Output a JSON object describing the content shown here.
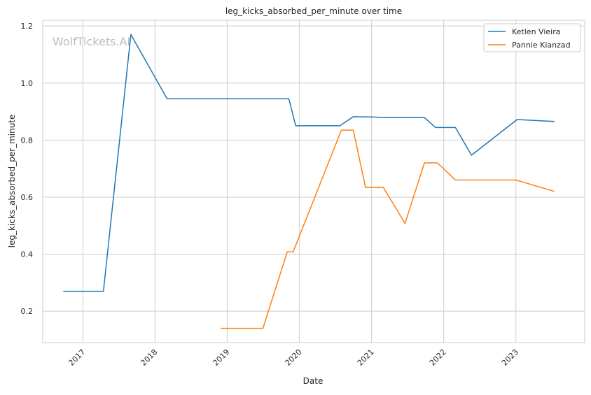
{
  "chart_data": {
    "type": "line",
    "title": "leg_kicks_absorbed_per_minute over time",
    "xlabel": "Date",
    "ylabel": "leg_kicks_absorbed_per_minute",
    "watermark": "WolfTickets.AI",
    "grid": true,
    "legend_position": "top-right",
    "x_tick_labels": [
      "2017",
      "2018",
      "2019",
      "2020",
      "2021",
      "2022",
      "2023"
    ],
    "y_tick_labels": [
      "0.2",
      "0.4",
      "0.6",
      "0.8",
      "1.0",
      "1.2"
    ],
    "xlim": [
      "2016-06-12",
      "2023-12-15"
    ],
    "ylim": [
      0.09,
      1.22
    ],
    "series": [
      {
        "name": "Ketlen Vieira",
        "color": "#1f77b4",
        "points": [
          {
            "x": "2016-09-24",
            "y": 0.27
          },
          {
            "x": "2017-04-15",
            "y": 0.27
          },
          {
            "x": "2017-09-01",
            "y": 1.17
          },
          {
            "x": "2018-03-03",
            "y": 0.945
          },
          {
            "x": "2019-11-09",
            "y": 0.945
          },
          {
            "x": "2019-12-14",
            "y": 0.85
          },
          {
            "x": "2020-07-25",
            "y": 0.85
          },
          {
            "x": "2020-09-30",
            "y": 0.882
          },
          {
            "x": "2021-01-01",
            "y": 0.881
          },
          {
            "x": "2021-02-27",
            "y": 0.879
          },
          {
            "x": "2021-09-25",
            "y": 0.879
          },
          {
            "x": "2021-11-20",
            "y": 0.844
          },
          {
            "x": "2022-03-01",
            "y": 0.844
          },
          {
            "x": "2022-05-21",
            "y": 0.747
          },
          {
            "x": "2023-01-07",
            "y": 0.872
          },
          {
            "x": "2023-07-15",
            "y": 0.865
          }
        ]
      },
      {
        "name": "Pannie Kianzad",
        "color": "#ff7f0e",
        "points": [
          {
            "x": "2018-11-30",
            "y": 0.14
          },
          {
            "x": "2019-07-01",
            "y": 0.14
          },
          {
            "x": "2019-11-01",
            "y": 0.408
          },
          {
            "x": "2019-12-01",
            "y": 0.408
          },
          {
            "x": "2020-08-01",
            "y": 0.835
          },
          {
            "x": "2020-09-30",
            "y": 0.835
          },
          {
            "x": "2020-12-01",
            "y": 0.634
          },
          {
            "x": "2021-03-01",
            "y": 0.634
          },
          {
            "x": "2021-06-19",
            "y": 0.508
          },
          {
            "x": "2021-09-25",
            "y": 0.72
          },
          {
            "x": "2021-11-30",
            "y": 0.72
          },
          {
            "x": "2022-03-01",
            "y": 0.66
          },
          {
            "x": "2023-01-01",
            "y": 0.66
          },
          {
            "x": "2023-07-15",
            "y": 0.62
          }
        ]
      }
    ]
  }
}
